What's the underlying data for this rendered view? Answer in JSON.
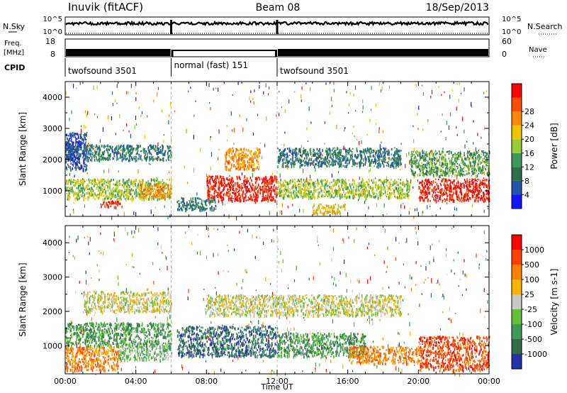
{
  "header": {
    "station": "Inuvik (fitACF)",
    "beam": "Beam 08",
    "date": "18/Sep/2013"
  },
  "status_panels": {
    "nsky_label": "N.Sky",
    "nsky_ticks": [
      "10^5",
      "10^0"
    ],
    "nsearch_label": "N.Search",
    "nsearch_ticks": [
      "10^5",
      "10^0"
    ],
    "freq_label_1": "Freq.",
    "freq_label_2": "[MHz]",
    "freq_ticks": [
      "18",
      "8"
    ],
    "nave_label": "Nave",
    "nave_ticks": [
      "60",
      "0"
    ],
    "cpid_label": "CPID",
    "cpid_segments": [
      {
        "label": "twofsound 3501",
        "start_hour": 0,
        "end_hour": 6
      },
      {
        "label": "normal (fast) 151",
        "start_hour": 6,
        "end_hour": 12
      },
      {
        "label": "twofsound 3501",
        "start_hour": 12,
        "end_hour": 24
      }
    ]
  },
  "chart_data": [
    {
      "type": "heatmap",
      "title": "",
      "xlabel": "Time UT",
      "ylabel": "Slant Range [km]",
      "xlim_hours": [
        0,
        24
      ],
      "x_ticks": [
        "00:00",
        "04:00",
        "08:00",
        "12:00",
        "16:00",
        "20:00",
        "00:00"
      ],
      "ylim": [
        180,
        4500
      ],
      "y_ticks": [
        "1000",
        "2000",
        "3000",
        "4000"
      ],
      "mode_change_hours": [
        6,
        12
      ],
      "colorbar": {
        "label": "Power [dB]",
        "ticks": [
          "4",
          "8",
          "12",
          "16",
          "20",
          "24",
          "28"
        ],
        "colors": [
          "#1414ff",
          "#2255aa",
          "#2e6e49",
          "#3d9a56",
          "#9acd32",
          "#f2c400",
          "#ff8a00",
          "#ff4d00",
          "#ff0000"
        ]
      },
      "echo_regions": [
        {
          "t0": 0.0,
          "t1": 6.0,
          "r0": 750,
          "r1": 1400,
          "level": 4
        },
        {
          "t0": 0.0,
          "t1": 6.0,
          "r0": 2000,
          "r1": 2500,
          "level": 2
        },
        {
          "t0": 0.0,
          "t1": 1.2,
          "r0": 1700,
          "r1": 2900,
          "level": 1
        },
        {
          "t0": 2.0,
          "t1": 3.2,
          "r0": 500,
          "r1": 700,
          "level": 8
        },
        {
          "t0": 4.2,
          "t1": 6.0,
          "r0": 800,
          "r1": 1250,
          "level": 6
        },
        {
          "t0": 8.0,
          "t1": 12.0,
          "r0": 700,
          "r1": 1500,
          "level": 8
        },
        {
          "t0": 9.0,
          "t1": 11.0,
          "r0": 1700,
          "r1": 2400,
          "level": 6
        },
        {
          "t0": 6.3,
          "t1": 8.5,
          "r0": 400,
          "r1": 800,
          "level": 2
        },
        {
          "t0": 12.0,
          "t1": 19.5,
          "r0": 800,
          "r1": 1400,
          "level": 4
        },
        {
          "t0": 12.0,
          "t1": 19.0,
          "r0": 1800,
          "r1": 2400,
          "level": 2
        },
        {
          "t0": 14.0,
          "t1": 16.0,
          "r0": 300,
          "r1": 600,
          "level": 5
        },
        {
          "t0": 20.0,
          "t1": 24.0,
          "r0": 700,
          "r1": 1400,
          "level": 8
        },
        {
          "t0": 19.5,
          "t1": 24.0,
          "r0": 1500,
          "r1": 2300,
          "level": 3
        }
      ]
    },
    {
      "type": "heatmap",
      "title": "",
      "xlabel": "Time UT",
      "ylabel": "Slant Range [km]",
      "xlim_hours": [
        0,
        24
      ],
      "x_ticks": [
        "00:00",
        "04:00",
        "08:00",
        "12:00",
        "16:00",
        "20:00",
        "00:00"
      ],
      "ylim": [
        180,
        4500
      ],
      "y_ticks": [
        "1000",
        "2000",
        "3000",
        "4000"
      ],
      "mode_change_hours": [
        6,
        12
      ],
      "colorbar": {
        "label": "Velocity [m s-1]",
        "ticks": [
          "1000",
          "500",
          "100",
          "25",
          "-25",
          "-100",
          "-500",
          "-1000"
        ],
        "colors": [
          "#2233aa",
          "#2f6e49",
          "#3d9a56",
          "#63c032",
          "#c8c8c8",
          "#ffb000",
          "#ff8000",
          "#ff4000",
          "#ff0000"
        ]
      },
      "echo_regions": [
        {
          "t0": 0.0,
          "t1": 3.0,
          "r0": 300,
          "r1": 1000,
          "level": 6
        },
        {
          "t0": 0.0,
          "t1": 6.0,
          "r0": 1000,
          "r1": 1700,
          "level": 2
        },
        {
          "t0": 1.0,
          "t1": 6.0,
          "r0": 2000,
          "r1": 2600,
          "level": 4
        },
        {
          "t0": 3.0,
          "t1": 6.0,
          "r0": 600,
          "r1": 1000,
          "level": 3
        },
        {
          "t0": 6.3,
          "t1": 12.0,
          "r0": 700,
          "r1": 1600,
          "level": 1
        },
        {
          "t0": 8.0,
          "t1": 12.0,
          "r0": 1900,
          "r1": 2500,
          "level": 4
        },
        {
          "t0": 12.0,
          "t1": 17.0,
          "r0": 700,
          "r1": 1400,
          "level": 2
        },
        {
          "t0": 12.0,
          "t1": 19.0,
          "r0": 1900,
          "r1": 2500,
          "level": 4
        },
        {
          "t0": 16.0,
          "t1": 20.0,
          "r0": 500,
          "r1": 1000,
          "level": 6
        },
        {
          "t0": 20.0,
          "t1": 24.0,
          "r0": 300,
          "r1": 1300,
          "level": 7
        }
      ]
    }
  ]
}
